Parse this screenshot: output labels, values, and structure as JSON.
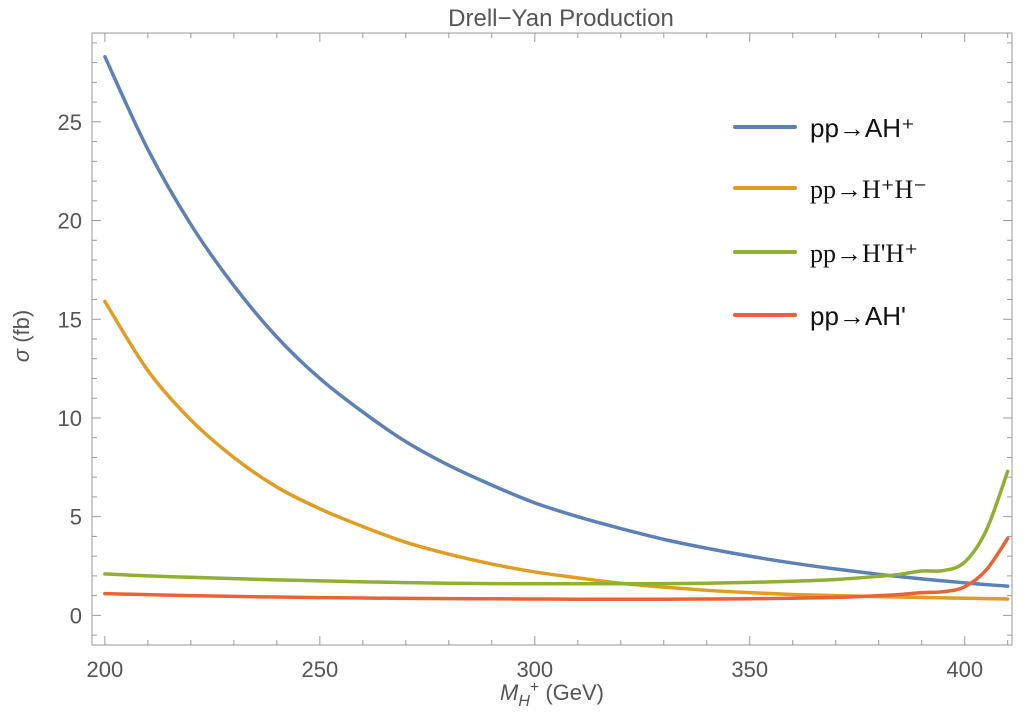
{
  "chart_data": {
    "type": "line",
    "title": "Drell−Yan Production",
    "xlabel": {
      "main": "M",
      "sub": "H",
      "sup": "+",
      "unit": " (GeV)"
    },
    "ylabel": {
      "symbol": "σ",
      "unit": " (fb)"
    },
    "xlim": [
      197,
      411
    ],
    "ylim": [
      -1.5,
      29.5
    ],
    "x_ticks": [
      200,
      250,
      300,
      350,
      400
    ],
    "y_ticks": [
      0,
      5,
      10,
      15,
      20,
      25
    ],
    "x_tick_labels": [
      "200",
      "250",
      "300",
      "350",
      "400"
    ],
    "y_tick_labels": [
      "0",
      "5",
      "10",
      "15",
      "20",
      "25"
    ],
    "grid": false,
    "legend_position": "top-right",
    "x": [
      200,
      210,
      220,
      230,
      240,
      250,
      260,
      270,
      280,
      290,
      300,
      310,
      320,
      330,
      340,
      350,
      360,
      370,
      380,
      385,
      390,
      395,
      400,
      405,
      410
    ],
    "series": [
      {
        "name": "pp→AH⁺",
        "color": "#5e81b5",
        "legend_font": "sans",
        "values": [
          28.3,
          23.6,
          19.8,
          16.7,
          14.1,
          12.0,
          10.3,
          8.8,
          7.6,
          6.6,
          5.7,
          5.0,
          4.4,
          3.85,
          3.4,
          3.0,
          2.65,
          2.35,
          2.08,
          1.96,
          1.85,
          1.75,
          1.65,
          1.56,
          1.48
        ]
      },
      {
        "name": "pp→H⁺H⁻",
        "color": "#e19c24",
        "legend_font": "serif",
        "values": [
          15.9,
          12.4,
          9.9,
          8.0,
          6.5,
          5.4,
          4.5,
          3.7,
          3.1,
          2.6,
          2.2,
          1.9,
          1.63,
          1.43,
          1.27,
          1.15,
          1.06,
          1.0,
          0.95,
          0.93,
          0.91,
          0.89,
          0.87,
          0.85,
          0.83
        ]
      },
      {
        "name": "pp→H'H⁺",
        "color": "#8fb032",
        "legend_font": "serif",
        "values": [
          2.1,
          2.0,
          1.93,
          1.86,
          1.8,
          1.75,
          1.7,
          1.66,
          1.63,
          1.61,
          1.6,
          1.6,
          1.6,
          1.61,
          1.63,
          1.67,
          1.73,
          1.82,
          1.98,
          2.08,
          2.25,
          2.27,
          2.7,
          4.3,
          7.3
        ]
      },
      {
        "name": "pp→AH'",
        "color": "#eb6235",
        "legend_font": "sans",
        "values": [
          1.1,
          1.05,
          1.0,
          0.96,
          0.93,
          0.9,
          0.88,
          0.86,
          0.85,
          0.84,
          0.83,
          0.82,
          0.82,
          0.82,
          0.83,
          0.84,
          0.87,
          0.91,
          1.0,
          1.06,
          1.15,
          1.2,
          1.45,
          2.3,
          3.9
        ]
      }
    ]
  }
}
